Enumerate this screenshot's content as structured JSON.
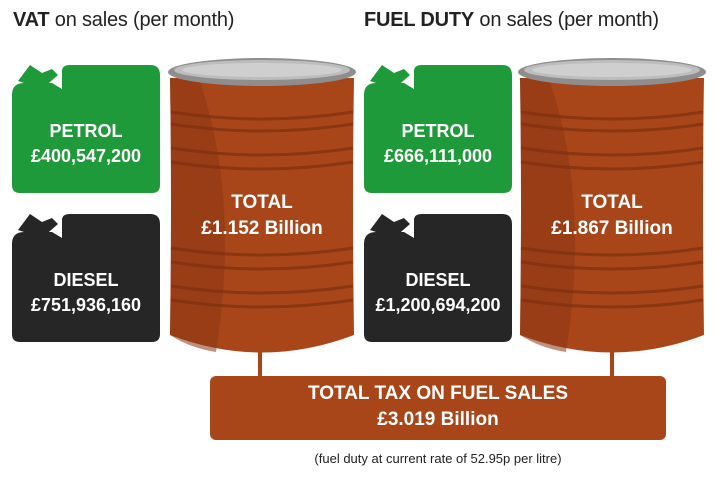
{
  "headings": {
    "vat": {
      "bold": "VAT",
      "rest": " on sales (per month)"
    },
    "fuel_duty": {
      "bold": "FUEL DUTY",
      "rest": " on sales (per month)"
    }
  },
  "vat": {
    "petrol": {
      "label": "PETROL",
      "value": "£400,547,200"
    },
    "diesel": {
      "label": "DIESEL",
      "value": "£751,936,160"
    },
    "total": {
      "label": "TOTAL",
      "value": "£1.152 Billion"
    }
  },
  "fuel_duty": {
    "petrol": {
      "label": "PETROL",
      "value": "£666,111,000"
    },
    "diesel": {
      "label": "DIESEL",
      "value": "£1,200,694,200"
    },
    "total": {
      "label": "TOTAL",
      "value": "£1.867 Billion"
    }
  },
  "grand_total": {
    "label": "TOTAL TAX ON FUEL SALES",
    "value": "£3.019 Billion"
  },
  "footnote": "(fuel duty at current rate of 52.95p per litre)",
  "colors": {
    "petrol_green": "#1f9a3a",
    "diesel_black": "#262626",
    "barrel_rust": "#a8461a",
    "barrel_dark": "#8a3612",
    "lid_grey": "#a7a7a7"
  },
  "icons": {
    "petrol_can": "jerry-can-icon",
    "diesel_can": "jerry-can-icon",
    "barrel": "oil-barrel-icon"
  }
}
